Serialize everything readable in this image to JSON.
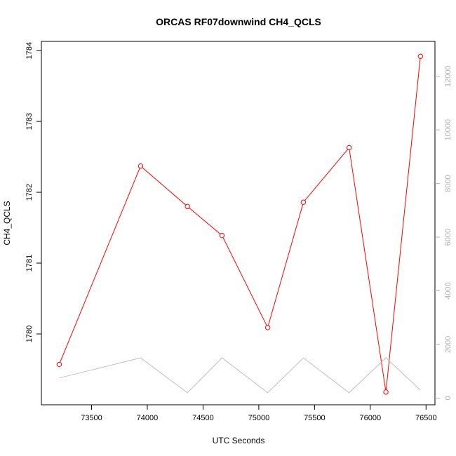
{
  "chart_data": {
    "type": "line",
    "title": "ORCAS RF07downwind CH4_QCLS",
    "xlabel": "UTC Seconds",
    "ylabel": "CH4_QCLS",
    "xlim": [
      73050,
      76580
    ],
    "ylim": [
      1779.0,
      1784.13
    ],
    "y2lim": [
      -250,
      13300
    ],
    "xticks": [
      73500,
      74000,
      74500,
      75000,
      75500,
      76000,
      76500
    ],
    "yticks": [
      1780,
      1781,
      1782,
      1783,
      1784
    ],
    "y2ticks": [
      0,
      2000,
      4000,
      6000,
      8000,
      10000,
      12000
    ],
    "grid": false,
    "series": [
      {
        "axis": "left",
        "color": "#ff0000",
        "marker": "open-circle",
        "x": [
          73210,
          73940,
          74360,
          74670,
          75080,
          75400,
          75810,
          76140,
          76450
        ],
        "y": [
          1779.57,
          1782.37,
          1781.8,
          1781.39,
          1780.09,
          1781.86,
          1782.63,
          1779.18,
          1783.92
        ]
      },
      {
        "axis": "right",
        "color": "#c0c0c0",
        "marker": "none",
        "x": [
          73210,
          73940,
          74360,
          74670,
          75080,
          75400,
          75810,
          76140,
          76450
        ],
        "y": [
          750,
          1500,
          200,
          1500,
          200,
          1500,
          200,
          1500,
          300
        ]
      }
    ]
  }
}
